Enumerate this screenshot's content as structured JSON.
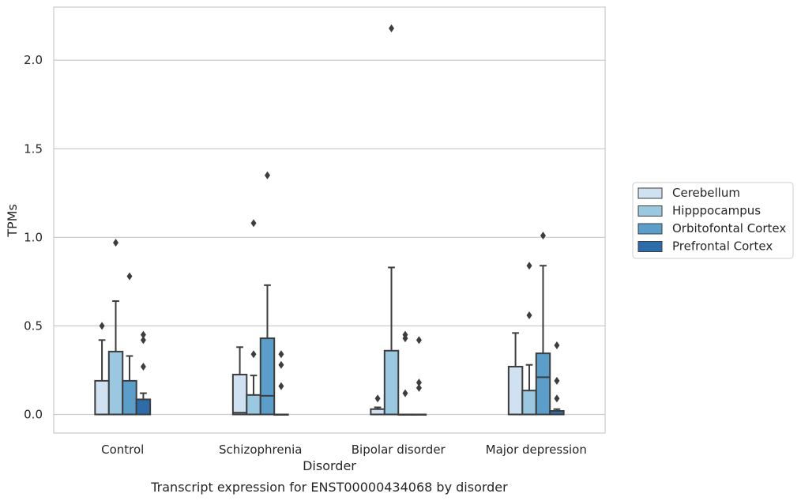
{
  "chart_data": {
    "type": "box",
    "caption": "Transcript expression for ENST00000434068 by disorder",
    "xlabel": "Disorder",
    "ylabel": "TPMs",
    "ylim": [
      -0.105,
      2.3
    ],
    "yticks": [
      0.0,
      0.5,
      1.0,
      1.5,
      2.0
    ],
    "ytick_labels": [
      "0.0",
      "0.5",
      "1.0",
      "1.5",
      "2.0"
    ],
    "grid": "horizontal",
    "legend_position": "right",
    "categories": [
      "Control",
      "Schizophrenia",
      "Bipolar disorder",
      "Major depression"
    ],
    "series": [
      {
        "name": "Cerebellum",
        "color": "#d0e1f2",
        "boxes": [
          {
            "q1": 0.0,
            "median": 0.0,
            "q3": 0.19,
            "whisker_low": 0.0,
            "whisker_high": 0.42,
            "outliers": [
              0.5
            ]
          },
          {
            "q1": 0.0,
            "median": 0.01,
            "q3": 0.225,
            "whisker_low": 0.0,
            "whisker_high": 0.38,
            "outliers": []
          },
          {
            "q1": 0.0,
            "median": 0.0,
            "q3": 0.03,
            "whisker_low": 0.0,
            "whisker_high": 0.04,
            "outliers": [
              0.09
            ]
          },
          {
            "q1": 0.0,
            "median": 0.0,
            "q3": 0.27,
            "whisker_low": 0.0,
            "whisker_high": 0.46,
            "outliers": []
          }
        ]
      },
      {
        "name": "Hipppocampus",
        "color": "#9ac8e0",
        "boxes": [
          {
            "q1": 0.0,
            "median": 0.0,
            "q3": 0.355,
            "whisker_low": 0.0,
            "whisker_high": 0.64,
            "outliers": [
              0.97
            ]
          },
          {
            "q1": 0.0,
            "median": 0.0,
            "q3": 0.11,
            "whisker_low": 0.0,
            "whisker_high": 0.22,
            "outliers": [
              0.34,
              1.08
            ]
          },
          {
            "q1": 0.0,
            "median": 0.0,
            "q3": 0.36,
            "whisker_low": 0.0,
            "whisker_high": 0.83,
            "outliers": [
              2.18
            ]
          },
          {
            "q1": 0.0,
            "median": 0.0,
            "q3": 0.135,
            "whisker_low": 0.0,
            "whisker_high": 0.28,
            "outliers": [
              0.56,
              0.84
            ]
          }
        ]
      },
      {
        "name": "Orbitofontal Cortex",
        "color": "#5a9ec9",
        "boxes": [
          {
            "q1": 0.0,
            "median": 0.0,
            "q3": 0.19,
            "whisker_low": 0.0,
            "whisker_high": 0.33,
            "outliers": [
              0.78
            ]
          },
          {
            "q1": 0.0,
            "median": 0.105,
            "q3": 0.43,
            "whisker_low": 0.0,
            "whisker_high": 0.73,
            "outliers": [
              1.35
            ]
          },
          {
            "q1": 0.0,
            "median": 0.0,
            "q3": 0.0,
            "whisker_low": 0.0,
            "whisker_high": 0.0,
            "outliers": [
              0.12,
              0.43,
              0.45
            ]
          },
          {
            "q1": 0.0,
            "median": 0.21,
            "q3": 0.345,
            "whisker_low": 0.0,
            "whisker_high": 0.84,
            "outliers": [
              1.01
            ]
          }
        ]
      },
      {
        "name": "Prefrontal Cortex",
        "color": "#2d6ca9",
        "boxes": [
          {
            "q1": 0.0,
            "median": 0.0,
            "q3": 0.085,
            "whisker_low": 0.0,
            "whisker_high": 0.12,
            "outliers": [
              0.27,
              0.42,
              0.45
            ]
          },
          {
            "q1": 0.0,
            "median": 0.0,
            "q3": 0.0,
            "whisker_low": 0.0,
            "whisker_high": 0.0,
            "outliers": [
              0.16,
              0.28,
              0.34
            ]
          },
          {
            "q1": 0.0,
            "median": 0.0,
            "q3": 0.0,
            "whisker_low": 0.0,
            "whisker_high": 0.0,
            "outliers": [
              0.15,
              0.18,
              0.42
            ]
          },
          {
            "q1": 0.0,
            "median": 0.0,
            "q3": 0.02,
            "whisker_low": 0.0,
            "whisker_high": 0.03,
            "outliers": [
              0.09,
              0.19,
              0.39
            ]
          }
        ]
      }
    ]
  }
}
